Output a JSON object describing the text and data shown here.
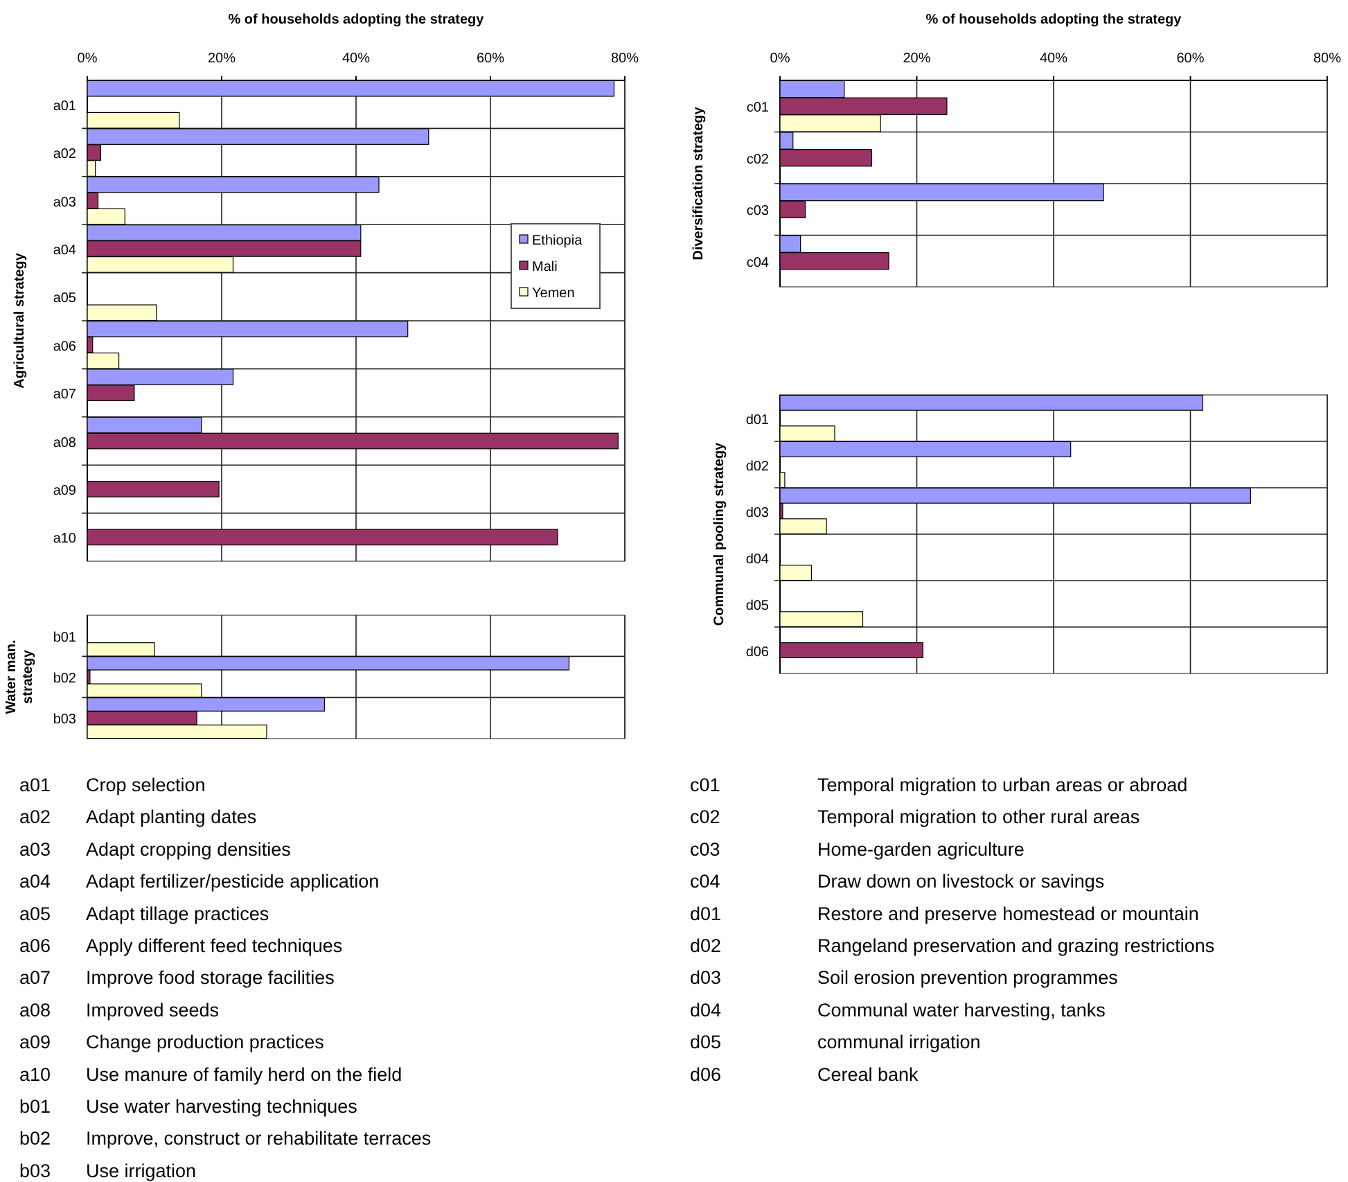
{
  "chart_data": [
    {
      "type": "bar",
      "orientation": "horizontal",
      "title": "% of households adopting the strategy",
      "ylabel": "Agricultural strategy",
      "categories": [
        "a01",
        "a02",
        "a03",
        "a04",
        "a05",
        "a06",
        "a07",
        "a08",
        "a09",
        "a10"
      ],
      "series": [
        {
          "name": "Ethiopia",
          "color": "#9999ff",
          "values": [
            78.4,
            50.8,
            43.4,
            40.7,
            null,
            47.7,
            21.7,
            17.0,
            null,
            null
          ]
        },
        {
          "name": "Mali",
          "color": "#993366",
          "values": [
            null,
            2.0,
            1.6,
            40.7,
            null,
            0.8,
            7.0,
            79.0,
            19.6,
            70.0
          ]
        },
        {
          "name": "Yemen",
          "color": "#ffffcc",
          "values": [
            13.7,
            1.2,
            5.6,
            21.7,
            10.3,
            4.7,
            null,
            null,
            null,
            null
          ]
        }
      ],
      "xlim": [
        0,
        80
      ],
      "xticks": [
        {
          "value": 0,
          "label": "0%"
        },
        {
          "value": 20,
          "label": "20%"
        },
        {
          "value": 40,
          "label": "40%"
        },
        {
          "value": 60,
          "label": "60%"
        },
        {
          "value": 80,
          "label": "80%"
        }
      ],
      "grid": true,
      "legend": "right",
      "annotations": [
        "a01 Crop selection",
        "a02 Adapt planting dates",
        "a03 Adapt cropping densities",
        "a04 Adapt fertilizer/pesticide application",
        "a05 Adapt tillage practices",
        "a06 Apply different feed techniques",
        "a07 Improve food storage facilities",
        "a08 Improved seeds",
        "a09 Change production practices",
        "a10 Use manure of family herd on the field"
      ]
    },
    {
      "type": "bar",
      "orientation": "horizontal",
      "ylabel": "Water man. strategy",
      "categories": [
        "b01",
        "b02",
        "b03"
      ],
      "series": [
        {
          "color": "#9999ff",
          "values": [
            null,
            71.7,
            35.3
          ]
        },
        {
          "color": "#993366",
          "values": [
            null,
            0.4,
            16.3
          ]
        },
        {
          "color": "#ffffcc",
          "values": [
            10.0,
            17.0,
            26.7
          ]
        }
      ],
      "xlim": [
        0,
        80
      ],
      "xticks": [
        {
          "value": 0,
          "label": null
        },
        {
          "value": 20,
          "label": null
        },
        {
          "value": 40,
          "label": null
        },
        {
          "value": 60,
          "label": null
        },
        {
          "value": 80,
          "label": null
        }
      ],
      "tick_labels": "y",
      "grid": true,
      "annotations": [
        "b01 Use water harvesting techniques",
        "b02 Improve, construct or rehabilitate terraces",
        "b03 Use irrigation"
      ]
    },
    {
      "type": "bar",
      "orientation": "horizontal",
      "title": "% of households adopting the strategy",
      "ylabel": "Diversification strategy",
      "categories": [
        "c01",
        "c02",
        "c03",
        "c04"
      ],
      "series": [
        {
          "color": "#9999ff",
          "values": [
            9.4,
            1.9,
            47.3,
            3.0
          ]
        },
        {
          "color": "#993366",
          "values": [
            24.4,
            13.4,
            3.7,
            15.9
          ]
        },
        {
          "color": "#ffffcc",
          "values": [
            14.7,
            null,
            null,
            null
          ]
        }
      ],
      "xlim": [
        0,
        80
      ],
      "xticks": [
        {
          "value": 0,
          "label": "0%"
        },
        {
          "value": 20,
          "label": "20%"
        },
        {
          "value": 40,
          "label": "40%"
        },
        {
          "value": 60,
          "label": "60%"
        },
        {
          "value": 80,
          "label": "80%"
        }
      ],
      "grid": true,
      "annotations": [
        "c01 Temporal migration to urban areas or abroad",
        "c02 Temporal migration to other rural areas",
        "c03 Home-garden agriculture",
        "c04 Draw down on livestock or savings"
      ]
    },
    {
      "type": "bar",
      "orientation": "horizontal",
      "ylabel": "Communal pooling strategy",
      "categories": [
        "d01",
        "d02",
        "d03",
        "d04",
        "d05",
        "d06"
      ],
      "series": [
        {
          "color": "#9999ff",
          "values": [
            61.8,
            42.5,
            68.8,
            null,
            null,
            null
          ]
        },
        {
          "color": "#993366",
          "values": [
            null,
            null,
            0.4,
            null,
            null,
            20.9
          ]
        },
        {
          "color": "#ffffcc",
          "values": [
            8.0,
            0.7,
            6.8,
            4.6,
            12.1,
            null
          ]
        }
      ],
      "xlim": [
        0,
        80
      ],
      "xticks": [
        {
          "value": 0,
          "label": null
        },
        {
          "value": 20,
          "label": null
        },
        {
          "value": 40,
          "label": null
        },
        {
          "value": 60,
          "label": null
        },
        {
          "value": 80,
          "label": null
        }
      ],
      "tick_labels": "y",
      "grid": true,
      "annotations": [
        "d01 Restore and preserve homestead or mountain",
        "d02 Rangeland preservation and grazing restrictions",
        "d03 Soil erosion prevention programmes",
        "d04 Communal water harvesting, tanks",
        "d05 communal irrigation",
        "d06 Cereal bank"
      ]
    }
  ]
}
